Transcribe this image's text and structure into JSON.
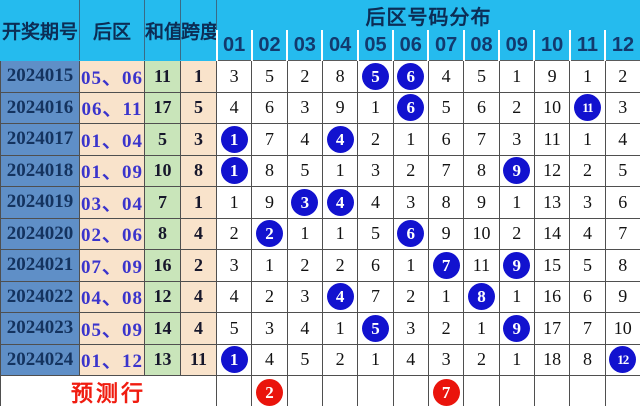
{
  "colors": {
    "header_bg": "#25bbee",
    "header_text": "#0c2d55",
    "period_col_bg": "#5f8fc7",
    "back_col_bg": "#f9e3cb",
    "sum_col_bg": "#c9e5ba",
    "span_col_bg": "#f9e3cb",
    "ball_blue": "#1212cf",
    "ball_red": "#ea140c",
    "back_text_blue": "#3b34cc",
    "prediction_text_red": "#f01c10"
  },
  "chart_data": {
    "type": "table",
    "title": "后区号码分布",
    "header": {
      "period_label": "开奖期号",
      "back_area_label": "后区",
      "sum_label": "和值",
      "span_label": "跨度",
      "distribution_label": "后区号码分布",
      "number_headers": [
        "01",
        "02",
        "03",
        "04",
        "05",
        "06",
        "07",
        "08",
        "09",
        "10",
        "11",
        "12"
      ]
    },
    "rows": [
      {
        "period": "2024015",
        "back_area": "05、06",
        "sum": "11",
        "span": "1",
        "distribution": [
          3,
          5,
          2,
          8,
          5,
          6,
          4,
          5,
          1,
          9,
          1,
          2
        ],
        "hit_numbers": [
          5,
          6
        ]
      },
      {
        "period": "2024016",
        "back_area": "06、11",
        "sum": "17",
        "span": "5",
        "distribution": [
          4,
          6,
          3,
          9,
          1,
          6,
          5,
          6,
          2,
          10,
          11,
          3
        ],
        "hit_numbers": [
          6,
          11
        ]
      },
      {
        "period": "2024017",
        "back_area": "01、04",
        "sum": "5",
        "span": "3",
        "distribution": [
          1,
          7,
          4,
          4,
          2,
          1,
          6,
          7,
          3,
          11,
          1,
          4
        ],
        "hit_numbers": [
          1,
          4
        ]
      },
      {
        "period": "2024018",
        "back_area": "01、09",
        "sum": "10",
        "span": "8",
        "distribution": [
          1,
          8,
          5,
          1,
          3,
          2,
          7,
          8,
          9,
          12,
          2,
          5
        ],
        "hit_numbers": [
          1,
          9
        ]
      },
      {
        "period": "2024019",
        "back_area": "03、04",
        "sum": "7",
        "span": "1",
        "distribution": [
          1,
          9,
          3,
          4,
          4,
          3,
          8,
          9,
          1,
          13,
          3,
          6
        ],
        "hit_numbers": [
          3,
          4
        ]
      },
      {
        "period": "2024020",
        "back_area": "02、06",
        "sum": "8",
        "span": "4",
        "distribution": [
          2,
          2,
          1,
          1,
          5,
          6,
          9,
          10,
          2,
          14,
          4,
          7
        ],
        "hit_numbers": [
          2,
          6
        ]
      },
      {
        "period": "2024021",
        "back_area": "07、09",
        "sum": "16",
        "span": "2",
        "distribution": [
          3,
          1,
          2,
          2,
          6,
          1,
          7,
          11,
          9,
          15,
          5,
          8
        ],
        "hit_numbers": [
          7,
          9
        ]
      },
      {
        "period": "2024022",
        "back_area": "04、08",
        "sum": "12",
        "span": "4",
        "distribution": [
          4,
          2,
          3,
          4,
          7,
          2,
          1,
          8,
          1,
          16,
          6,
          9
        ],
        "hit_numbers": [
          4,
          8
        ]
      },
      {
        "period": "2024023",
        "back_area": "05、09",
        "sum": "14",
        "span": "4",
        "distribution": [
          5,
          3,
          4,
          1,
          5,
          3,
          2,
          1,
          9,
          17,
          7,
          10
        ],
        "hit_numbers": [
          5,
          9
        ]
      },
      {
        "period": "2024024",
        "back_area": "01、12",
        "sum": "13",
        "span": "11",
        "distribution": [
          1,
          4,
          5,
          2,
          1,
          4,
          3,
          2,
          1,
          18,
          8,
          12
        ],
        "hit_numbers": [
          1,
          12
        ]
      }
    ],
    "prediction_row": {
      "label": "预测行",
      "hit_numbers": [
        2,
        7
      ],
      "ball_color": "red"
    }
  }
}
